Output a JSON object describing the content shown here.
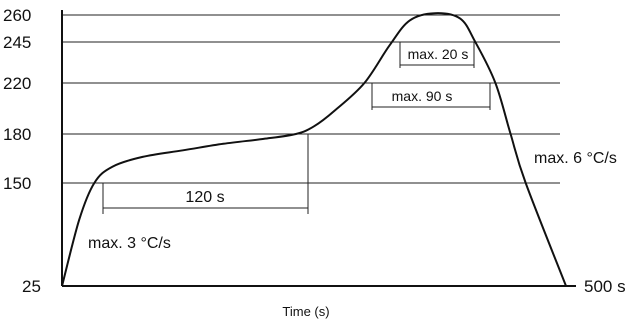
{
  "chart_data": {
    "type": "line",
    "title": "",
    "xlabel": "Time (s)",
    "ylabel": "",
    "y_ticks": [
      "260",
      "245",
      "220",
      "180",
      "150",
      "25"
    ],
    "x_end_label": "500 s",
    "grid": true,
    "series": [
      {
        "points": [
          [
            0,
            25
          ],
          [
            17,
            105
          ],
          [
            32,
            150
          ],
          [
            50,
            160
          ],
          [
            80,
            166
          ],
          [
            120,
            170
          ],
          [
            160,
            174
          ],
          [
            200,
            177
          ],
          [
            232,
            180
          ],
          [
            250,
            186
          ],
          [
            270,
            198
          ],
          [
            300,
            220
          ],
          [
            325,
            243
          ],
          [
            345,
            257
          ],
          [
            370,
            261
          ],
          [
            395,
            258
          ],
          [
            410,
            245
          ],
          [
            430,
            220
          ],
          [
            445,
            180
          ],
          [
            460,
            150
          ],
          [
            500,
            25
          ]
        ]
      }
    ],
    "annotations": [
      {
        "label": "max. 3 °C/s"
      },
      {
        "label": "120 s"
      },
      {
        "label": "max. 90 s"
      },
      {
        "label": "max. 20 s"
      },
      {
        "label": "max. 6 °C/s"
      }
    ]
  }
}
